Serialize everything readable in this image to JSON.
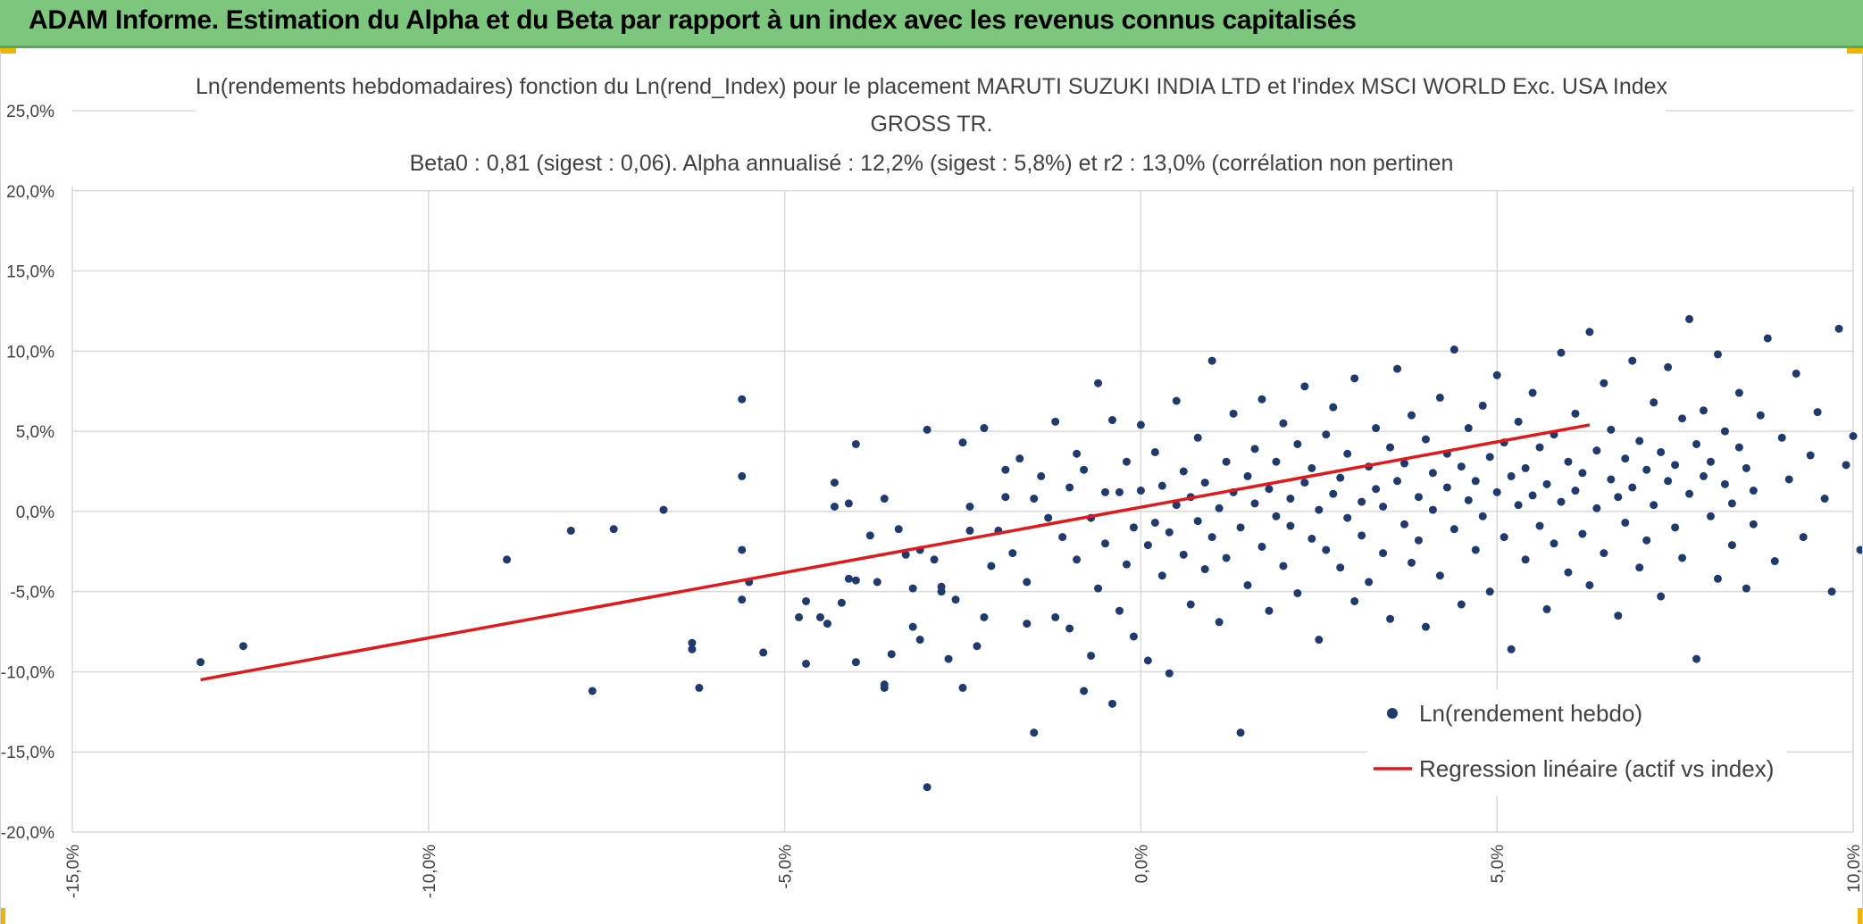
{
  "banner": {
    "title": "ADAM Informe. Estimation du Alpha et du Beta par rapport à un index avec les revenus connus capitalisés"
  },
  "colors": {
    "banner": "#7dc67e",
    "points": "#1f3a6e",
    "regression": "#e0191b",
    "grid": "#d9d9d9"
  },
  "chart_data": {
    "type": "scatter",
    "title_lines": [
      "Ln(rendements hebdomadaires) fonction du Ln(rend_Index) pour le placement MARUTI SUZUKI INDIA LTD et l'index MSCI WORLD Exc. USA Index",
      "GROSS TR.",
      "Beta0 : 0,81 (sigest : 0,06). Alpha annualisé : 12,2% (sigest : 5,8%) et r2 : 13,0% (corrélation non pertinen"
    ],
    "xlim": [
      -0.15,
      0.1
    ],
    "ylim": [
      -0.2,
      0.25
    ],
    "x_ticks": [
      -0.15,
      -0.1,
      -0.05,
      0.0,
      0.05,
      0.1
    ],
    "x_tick_labels": [
      "-15,0%",
      "-10,0%",
      "-5,0%",
      "0,0%",
      "5,0%",
      "10,0%"
    ],
    "y_ticks": [
      0.25,
      0.2,
      0.15,
      0.1,
      0.05,
      0.0,
      -0.05,
      -0.1,
      -0.15,
      -0.2
    ],
    "y_tick_labels": [
      "25,0%",
      "20,0%",
      "15,0%",
      "10,0%",
      "5,0%",
      "0,0%",
      "-5,0%",
      "-10,0%",
      "-15,0%",
      "-20,0%"
    ],
    "grid": true,
    "legend_position": "bottom-right",
    "series": [
      {
        "name": "Ln(rendement hebdo)",
        "kind": "scatter",
        "color": "#1f3a6e",
        "points": [
          [
            -0.132,
            -0.094
          ],
          [
            -0.126,
            -0.084
          ],
          [
            -0.089,
            -0.03
          ],
          [
            -0.08,
            -0.012
          ],
          [
            -0.077,
            -0.112
          ],
          [
            -0.074,
            -0.011
          ],
          [
            -0.067,
            0.001
          ],
          [
            -0.063,
            -0.082
          ],
          [
            -0.063,
            -0.086
          ],
          [
            -0.062,
            -0.11
          ],
          [
            -0.056,
            0.07
          ],
          [
            -0.056,
            0.022
          ],
          [
            -0.056,
            -0.024
          ],
          [
            -0.056,
            -0.055
          ],
          [
            -0.055,
            -0.044
          ],
          [
            -0.053,
            -0.088
          ],
          [
            -0.048,
            -0.066
          ],
          [
            -0.047,
            -0.056
          ],
          [
            -0.047,
            -0.095
          ],
          [
            -0.045,
            -0.066
          ],
          [
            -0.044,
            -0.07
          ],
          [
            -0.043,
            0.003
          ],
          [
            -0.043,
            0.018
          ],
          [
            -0.042,
            -0.057
          ],
          [
            -0.041,
            0.005
          ],
          [
            -0.041,
            -0.042
          ],
          [
            -0.04,
            -0.094
          ],
          [
            -0.04,
            -0.043
          ],
          [
            -0.04,
            0.042
          ],
          [
            -0.038,
            -0.015
          ],
          [
            -0.037,
            -0.044
          ],
          [
            -0.036,
            0.008
          ],
          [
            -0.036,
            -0.11
          ],
          [
            -0.036,
            -0.108
          ],
          [
            -0.035,
            -0.089
          ],
          [
            -0.034,
            -0.011
          ],
          [
            -0.033,
            -0.027
          ],
          [
            -0.032,
            -0.048
          ],
          [
            -0.032,
            -0.072
          ],
          [
            -0.031,
            -0.08
          ],
          [
            -0.031,
            -0.024
          ],
          [
            -0.03,
            -0.172
          ],
          [
            -0.03,
            0.051
          ],
          [
            -0.029,
            -0.03
          ],
          [
            -0.028,
            -0.047
          ],
          [
            -0.028,
            -0.05
          ],
          [
            -0.027,
            -0.092
          ],
          [
            -0.026,
            -0.055
          ],
          [
            -0.025,
            0.043
          ],
          [
            -0.025,
            -0.11
          ],
          [
            -0.024,
            0.003
          ],
          [
            -0.024,
            -0.012
          ],
          [
            -0.023,
            -0.084
          ],
          [
            -0.022,
            0.052
          ],
          [
            -0.022,
            -0.066
          ],
          [
            -0.021,
            -0.034
          ],
          [
            -0.02,
            -0.012
          ],
          [
            -0.019,
            0.026
          ],
          [
            -0.019,
            0.009
          ],
          [
            -0.018,
            -0.026
          ],
          [
            -0.017,
            0.033
          ],
          [
            -0.016,
            -0.044
          ],
          [
            -0.016,
            -0.07
          ],
          [
            -0.015,
            -0.138
          ],
          [
            -0.015,
            0.008
          ],
          [
            -0.014,
            0.022
          ],
          [
            -0.013,
            -0.004
          ],
          [
            -0.012,
            0.056
          ],
          [
            -0.012,
            -0.066
          ],
          [
            -0.011,
            -0.016
          ],
          [
            -0.01,
            -0.073
          ],
          [
            -0.01,
            0.015
          ],
          [
            -0.009,
            -0.03
          ],
          [
            -0.009,
            0.036
          ],
          [
            -0.008,
            -0.112
          ],
          [
            -0.008,
            0.026
          ],
          [
            -0.007,
            -0.004
          ],
          [
            -0.007,
            -0.09
          ],
          [
            -0.006,
            0.08
          ],
          [
            -0.006,
            -0.048
          ],
          [
            -0.005,
            -0.02
          ],
          [
            -0.005,
            0.012
          ],
          [
            -0.004,
            -0.12
          ],
          [
            -0.004,
            0.057
          ],
          [
            -0.003,
            -0.062
          ],
          [
            -0.003,
            0.012
          ],
          [
            -0.002,
            -0.033
          ],
          [
            -0.002,
            0.031
          ],
          [
            -0.001,
            -0.01
          ],
          [
            -0.001,
            -0.078
          ],
          [
            0.0,
            0.013
          ],
          [
            0.0,
            0.054
          ],
          [
            0.001,
            -0.021
          ],
          [
            0.001,
            -0.093
          ],
          [
            0.002,
            -0.007
          ],
          [
            0.002,
            0.037
          ],
          [
            0.003,
            -0.04
          ],
          [
            0.003,
            0.016
          ],
          [
            0.004,
            -0.013
          ],
          [
            0.004,
            -0.101
          ],
          [
            0.005,
            0.004
          ],
          [
            0.005,
            0.069
          ],
          [
            0.006,
            -0.027
          ],
          [
            0.006,
            0.025
          ],
          [
            0.007,
            -0.058
          ],
          [
            0.007,
            0.009
          ],
          [
            0.008,
            -0.006
          ],
          [
            0.008,
            0.046
          ],
          [
            0.009,
            -0.036
          ],
          [
            0.009,
            0.018
          ],
          [
            0.01,
            -0.016
          ],
          [
            0.01,
            0.094
          ],
          [
            0.011,
            0.002
          ],
          [
            0.011,
            -0.069
          ],
          [
            0.012,
            0.031
          ],
          [
            0.012,
            -0.029
          ],
          [
            0.013,
            0.012
          ],
          [
            0.013,
            0.061
          ],
          [
            0.014,
            -0.01
          ],
          [
            0.014,
            -0.138
          ],
          [
            0.015,
            0.022
          ],
          [
            0.015,
            -0.046
          ],
          [
            0.016,
            0.005
          ],
          [
            0.016,
            0.039
          ],
          [
            0.017,
            -0.022
          ],
          [
            0.017,
            0.07
          ],
          [
            0.018,
            0.014
          ],
          [
            0.018,
            -0.062
          ],
          [
            0.019,
            -0.003
          ],
          [
            0.019,
            0.031
          ],
          [
            0.02,
            -0.034
          ],
          [
            0.02,
            0.055
          ],
          [
            0.021,
            0.008
          ],
          [
            0.021,
            -0.009
          ],
          [
            0.022,
            0.042
          ],
          [
            0.022,
            -0.051
          ],
          [
            0.023,
            0.018
          ],
          [
            0.023,
            0.078
          ],
          [
            0.024,
            -0.017
          ],
          [
            0.024,
            0.027
          ],
          [
            0.025,
            0.001
          ],
          [
            0.025,
            -0.08
          ],
          [
            0.026,
            0.048
          ],
          [
            0.026,
            -0.024
          ],
          [
            0.027,
            0.011
          ],
          [
            0.027,
            0.065
          ],
          [
            0.028,
            -0.035
          ],
          [
            0.028,
            0.021
          ],
          [
            0.029,
            -0.004
          ],
          [
            0.029,
            0.036
          ],
          [
            0.03,
            -0.056
          ],
          [
            0.03,
            0.083
          ],
          [
            0.031,
            0.006
          ],
          [
            0.031,
            -0.015
          ],
          [
            0.032,
            0.028
          ],
          [
            0.032,
            -0.044
          ],
          [
            0.033,
            0.014
          ],
          [
            0.033,
            0.052
          ],
          [
            0.034,
            -0.026
          ],
          [
            0.034,
            0.003
          ],
          [
            0.035,
            0.04
          ],
          [
            0.035,
            -0.067
          ],
          [
            0.036,
            0.019
          ],
          [
            0.036,
            0.089
          ],
          [
            0.037,
            -0.008
          ],
          [
            0.037,
            0.03
          ],
          [
            0.038,
            -0.032
          ],
          [
            0.038,
            0.06
          ],
          [
            0.039,
            0.009
          ],
          [
            0.039,
            -0.018
          ],
          [
            0.04,
            0.045
          ],
          [
            0.04,
            -0.072
          ],
          [
            0.041,
            0.024
          ],
          [
            0.041,
            0.001
          ],
          [
            0.042,
            0.071
          ],
          [
            0.042,
            -0.04
          ],
          [
            0.043,
            0.015
          ],
          [
            0.043,
            0.036
          ],
          [
            0.044,
            -0.011
          ],
          [
            0.044,
            0.101
          ],
          [
            0.045,
            0.028
          ],
          [
            0.045,
            -0.058
          ],
          [
            0.046,
            0.007
          ],
          [
            0.046,
            0.052
          ],
          [
            0.047,
            -0.024
          ],
          [
            0.047,
            0.019
          ],
          [
            0.048,
            0.066
          ],
          [
            0.048,
            -0.003
          ],
          [
            0.049,
            0.034
          ],
          [
            0.049,
            -0.05
          ],
          [
            0.05,
            0.012
          ],
          [
            0.05,
            0.085
          ],
          [
            0.051,
            -0.016
          ],
          [
            0.051,
            0.043
          ],
          [
            0.052,
            0.022
          ],
          [
            0.052,
            -0.086
          ],
          [
            0.053,
            0.004
          ],
          [
            0.053,
            0.056
          ],
          [
            0.054,
            -0.03
          ],
          [
            0.054,
            0.027
          ],
          [
            0.055,
            0.01
          ],
          [
            0.055,
            0.074
          ],
          [
            0.056,
            -0.009
          ],
          [
            0.056,
            0.04
          ],
          [
            0.057,
            -0.061
          ],
          [
            0.057,
            0.017
          ],
          [
            0.058,
            0.048
          ],
          [
            0.058,
            -0.02
          ],
          [
            0.059,
            0.006
          ],
          [
            0.059,
            0.099
          ],
          [
            0.06,
            0.031
          ],
          [
            0.06,
            -0.038
          ],
          [
            0.061,
            0.013
          ],
          [
            0.061,
            0.061
          ],
          [
            0.062,
            -0.014
          ],
          [
            0.062,
            0.024
          ],
          [
            0.063,
            0.112
          ],
          [
            0.063,
            -0.046
          ],
          [
            0.064,
            0.038
          ],
          [
            0.064,
            0.002
          ],
          [
            0.065,
            0.08
          ],
          [
            0.065,
            -0.026
          ],
          [
            0.066,
            0.02
          ],
          [
            0.066,
            0.051
          ],
          [
            0.067,
            -0.065
          ],
          [
            0.067,
            0.009
          ],
          [
            0.068,
            0.033
          ],
          [
            0.068,
            -0.007
          ],
          [
            0.069,
            0.094
          ],
          [
            0.069,
            0.015
          ],
          [
            0.07,
            -0.035
          ],
          [
            0.07,
            0.044
          ],
          [
            0.071,
            0.026
          ],
          [
            0.071,
            -0.018
          ],
          [
            0.072,
            0.068
          ],
          [
            0.072,
            0.004
          ],
          [
            0.073,
            -0.053
          ],
          [
            0.073,
            0.037
          ],
          [
            0.074,
            0.019
          ],
          [
            0.074,
            0.09
          ],
          [
            0.075,
            -0.01
          ],
          [
            0.075,
            0.029
          ],
          [
            0.076,
            0.058
          ],
          [
            0.076,
            -0.029
          ],
          [
            0.077,
            0.011
          ],
          [
            0.077,
            0.12
          ],
          [
            0.078,
            0.042
          ],
          [
            0.078,
            -0.092
          ],
          [
            0.079,
            0.022
          ],
          [
            0.079,
            0.063
          ],
          [
            0.08,
            -0.003
          ],
          [
            0.08,
            0.031
          ],
          [
            0.081,
            0.098
          ],
          [
            0.081,
            -0.042
          ],
          [
            0.082,
            0.017
          ],
          [
            0.082,
            0.05
          ],
          [
            0.083,
            0.005
          ],
          [
            0.083,
            -0.021
          ],
          [
            0.084,
            0.04
          ],
          [
            0.084,
            0.074
          ],
          [
            0.085,
            -0.048
          ],
          [
            0.085,
            0.027
          ],
          [
            0.086,
            0.013
          ],
          [
            0.086,
            -0.008
          ],
          [
            0.087,
            0.06
          ],
          [
            0.088,
            0.108
          ],
          [
            0.089,
            -0.031
          ],
          [
            0.09,
            0.046
          ],
          [
            0.091,
            0.02
          ],
          [
            0.092,
            0.086
          ],
          [
            0.093,
            -0.016
          ],
          [
            0.094,
            0.035
          ],
          [
            0.095,
            0.062
          ],
          [
            0.096,
            0.008
          ],
          [
            0.097,
            -0.05
          ],
          [
            0.098,
            0.114
          ],
          [
            0.099,
            0.029
          ],
          [
            0.1,
            0.047
          ],
          [
            0.101,
            -0.024
          ],
          [
            0.102,
            0.071
          ],
          [
            0.103,
            0.016
          ],
          [
            0.104,
            0.092
          ]
        ]
      },
      {
        "name": "Regression linéaire (actif vs index)",
        "kind": "line",
        "color": "#e0191b",
        "points": [
          [
            -0.132,
            -0.105
          ],
          [
            0.063,
            0.054
          ]
        ]
      }
    ]
  }
}
